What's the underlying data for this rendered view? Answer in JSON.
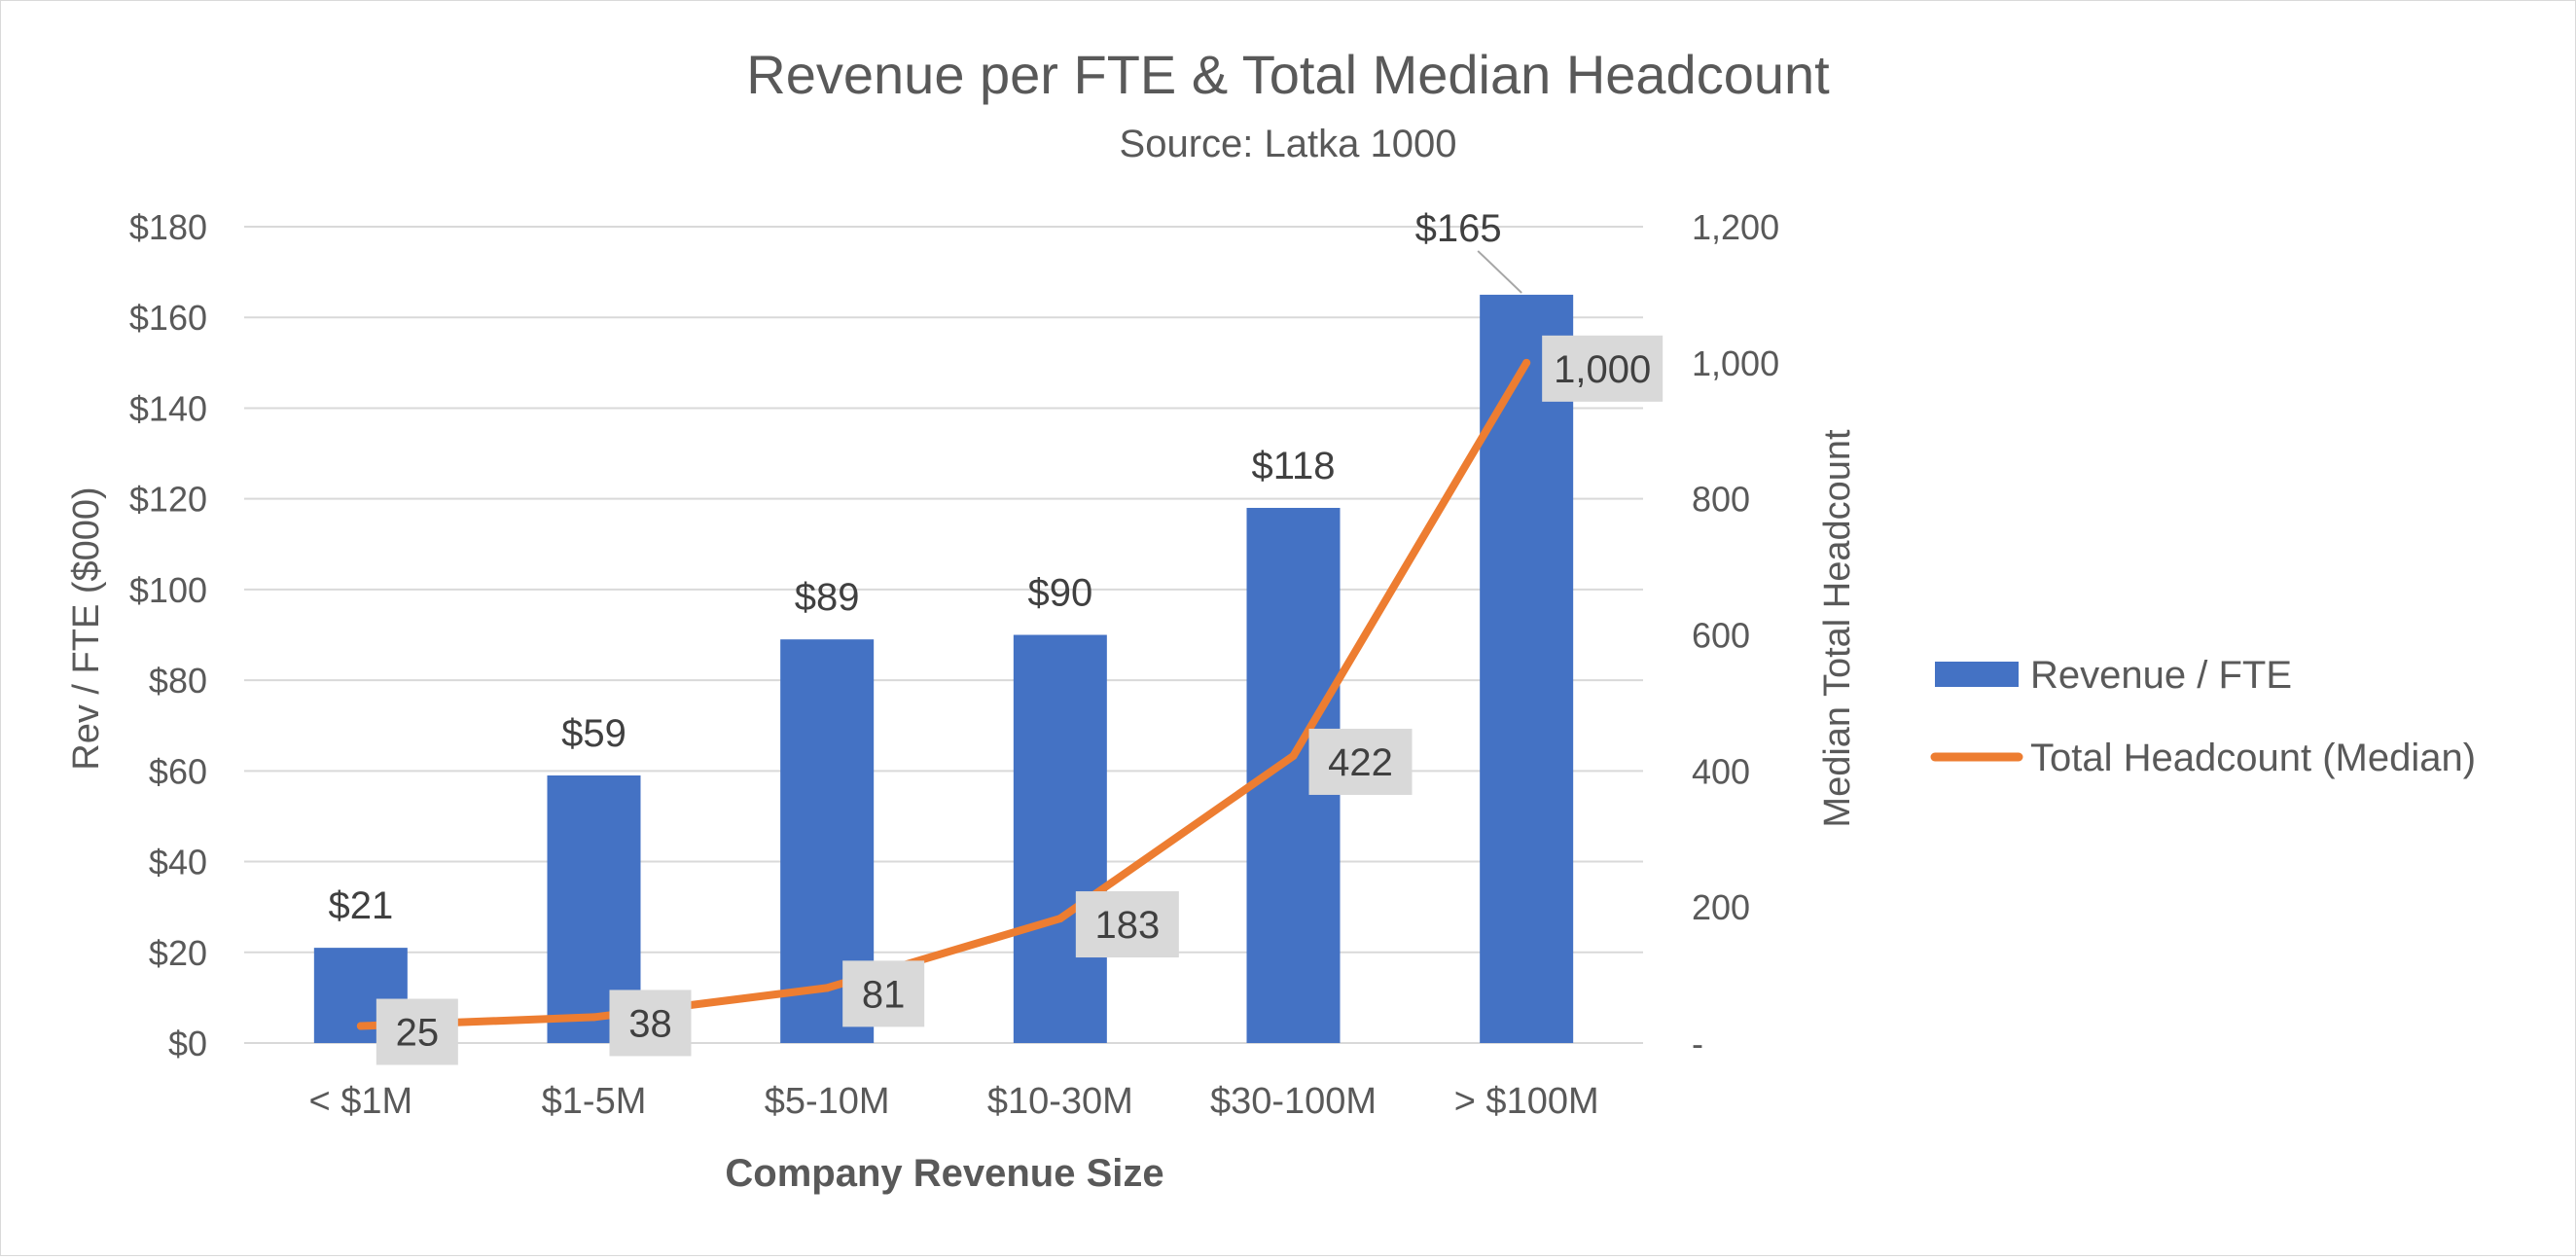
{
  "chart_data": {
    "type": "bar",
    "title": "Revenue per FTE & Total Median Headcount",
    "subtitle": "Source:  Latka 1000",
    "xlabel": "Company Revenue Size",
    "ylabel": "Rev / FTE ($000)",
    "y2label": "Median Total Headcount",
    "categories": [
      "< $1M",
      "$1-5M",
      "$5-10M",
      "$10-30M",
      "$30-100M",
      "> $100M"
    ],
    "ylim": [
      0,
      180
    ],
    "y2lim": [
      0,
      1200
    ],
    "yticks": [
      {
        "value": 0,
        "label": "$0"
      },
      {
        "value": 20,
        "label": "$20"
      },
      {
        "value": 40,
        "label": "$40"
      },
      {
        "value": 60,
        "label": "$60"
      },
      {
        "value": 80,
        "label": "$80"
      },
      {
        "value": 100,
        "label": "$100"
      },
      {
        "value": 120,
        "label": "$120"
      },
      {
        "value": 140,
        "label": "$140"
      },
      {
        "value": 160,
        "label": "$160"
      },
      {
        "value": 180,
        "label": "$180"
      }
    ],
    "y2ticks": [
      {
        "value": 0,
        "label": "-"
      },
      {
        "value": 200,
        "label": "200"
      },
      {
        "value": 400,
        "label": "400"
      },
      {
        "value": 600,
        "label": "600"
      },
      {
        "value": 800,
        "label": "800"
      },
      {
        "value": 1000,
        "label": "1,000"
      },
      {
        "value": 1200,
        "label": "1,200"
      }
    ],
    "grid": true,
    "legend_position": "right",
    "series": [
      {
        "name": "Revenue / FTE",
        "type": "bar",
        "axis": "left",
        "color": "#4472C4",
        "values": [
          21,
          59,
          89,
          90,
          118,
          165
        ],
        "labels": [
          "$21",
          "$59",
          "$89",
          "$90",
          "$118",
          "$165"
        ]
      },
      {
        "name": "Total Headcount (Median)",
        "type": "line",
        "axis": "right",
        "color": "#ED7D31",
        "values": [
          25,
          38,
          81,
          183,
          422,
          1000
        ],
        "labels": [
          "25",
          "38",
          "81",
          "183",
          "422",
          "1,000"
        ]
      }
    ]
  }
}
